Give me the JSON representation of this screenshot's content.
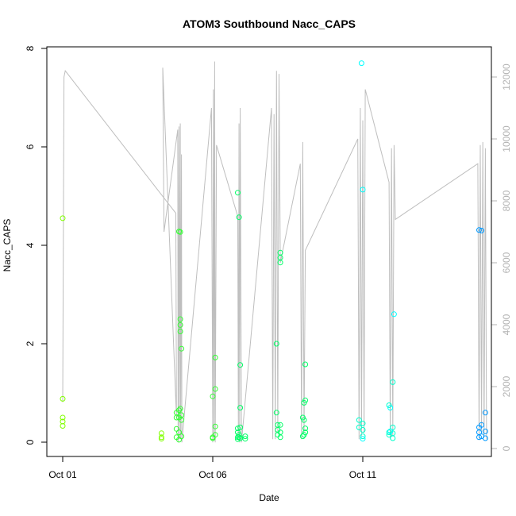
{
  "chart_data": {
    "type": "scatter",
    "title": "ATOM3 Southbound Nacc_CAPS",
    "xlabel": "Date",
    "ylabel": "Nacc_CAPS",
    "x_type": "date",
    "xlim": [
      "2016-09-30T19:00",
      "2016-10-15T12:00"
    ],
    "ylim": [
      0,
      8
    ],
    "y_ticks": [
      0,
      2,
      4,
      6,
      8
    ],
    "x_ticks": [
      {
        "value": "2016-10-01T00:00",
        "label": "Oct 01"
      },
      {
        "value": "2016-10-06T00:00",
        "label": "Oct 06"
      },
      {
        "value": "2016-10-11T00:00",
        "label": "Oct 11"
      }
    ],
    "y2lim": [
      0,
      13000
    ],
    "y2_ticks": [
      0,
      2000,
      4000,
      6000,
      8000,
      10000,
      12000
    ],
    "y2_tick_color": "#b3b3b3",
    "grid": false,
    "legend": "none",
    "point_style": "open-circle",
    "colors": {
      "series_1": "#80ff00",
      "series_2": "#33ff33",
      "series_3": "#00ff66",
      "series_4": "#00ffcc",
      "series_5": "#00ffff",
      "series_6": "#0099ff",
      "secondary_line": "#bebebe"
    },
    "series": [
      {
        "color": "#80ff00",
        "points": [
          [
            "2016-10-01T00:00",
            4.55
          ],
          [
            "2016-10-01T00:00",
            0.88
          ],
          [
            "2016-10-01T00:00",
            0.5
          ],
          [
            "2016-10-01T00:00",
            0.42
          ],
          [
            "2016-10-01T00:00",
            0.33
          ],
          [
            "2016-10-04T07:00",
            0.18
          ],
          [
            "2016-10-04T07:00",
            0.1
          ],
          [
            "2016-10-04T07:00",
            0.07
          ]
        ]
      },
      {
        "color": "#33ff33",
        "points": [
          [
            "2016-10-04T19:00",
            0.6
          ],
          [
            "2016-10-04T19:00",
            0.5
          ],
          [
            "2016-10-04T19:00",
            0.27
          ],
          [
            "2016-10-04T19:00",
            0.1
          ],
          [
            "2016-10-04T21:00",
            4.28
          ],
          [
            "2016-10-04T21:00",
            0.65
          ],
          [
            "2016-10-04T21:00",
            0.5
          ],
          [
            "2016-10-04T21:00",
            0.2
          ],
          [
            "2016-10-04T21:00",
            0.05
          ],
          [
            "2016-10-04T22:00",
            4.27
          ],
          [
            "2016-10-04T22:00",
            2.5
          ],
          [
            "2016-10-04T22:00",
            2.38
          ],
          [
            "2016-10-04T22:00",
            2.25
          ],
          [
            "2016-10-04T22:00",
            0.68
          ],
          [
            "2016-10-04T23:00",
            1.9
          ],
          [
            "2016-10-04T23:00",
            0.55
          ],
          [
            "2016-10-04T23:00",
            0.45
          ],
          [
            "2016-10-04T23:00",
            0.12
          ],
          [
            "2016-10-06T00:00",
            0.93
          ],
          [
            "2016-10-06T00:00",
            0.1
          ],
          [
            "2016-10-06T00:00",
            0.08
          ],
          [
            "2016-10-06T02:00",
            1.72
          ],
          [
            "2016-10-06T02:00",
            1.08
          ],
          [
            "2016-10-06T02:00",
            0.32
          ],
          [
            "2016-10-06T02:00",
            0.15
          ]
        ]
      },
      {
        "color": "#00ff66",
        "points": [
          [
            "2016-10-06T20:00",
            5.07
          ],
          [
            "2016-10-06T20:00",
            0.28
          ],
          [
            "2016-10-06T20:00",
            0.2
          ],
          [
            "2016-10-06T20:00",
            0.1
          ],
          [
            "2016-10-06T20:00",
            0.06
          ],
          [
            "2016-10-06T21:00",
            4.57
          ],
          [
            "2016-10-06T21:00",
            0.15
          ],
          [
            "2016-10-06T21:00",
            0.1
          ],
          [
            "2016-10-06T22:00",
            1.57
          ],
          [
            "2016-10-06T22:00",
            0.7
          ],
          [
            "2016-10-06T22:00",
            0.3
          ],
          [
            "2016-10-06T22:00",
            0.08
          ],
          [
            "2016-10-07T02:00",
            0.12
          ],
          [
            "2016-10-07T02:00",
            0.07
          ],
          [
            "2016-10-08T03:00",
            2.0
          ],
          [
            "2016-10-08T03:00",
            0.6
          ],
          [
            "2016-10-08T04:00",
            0.35
          ],
          [
            "2016-10-08T04:00",
            0.25
          ],
          [
            "2016-10-08T04:00",
            0.15
          ],
          [
            "2016-10-08T06:00",
            3.85
          ],
          [
            "2016-10-08T06:00",
            3.75
          ],
          [
            "2016-10-08T06:00",
            3.65
          ],
          [
            "2016-10-08T06:00",
            0.35
          ],
          [
            "2016-10-08T06:00",
            0.2
          ],
          [
            "2016-10-08T06:00",
            0.1
          ],
          [
            "2016-10-09T00:00",
            0.5
          ],
          [
            "2016-10-09T00:00",
            0.12
          ],
          [
            "2016-10-09T01:00",
            0.8
          ],
          [
            "2016-10-09T01:00",
            0.45
          ],
          [
            "2016-10-09T01:00",
            0.15
          ],
          [
            "2016-10-09T02:00",
            1.58
          ],
          [
            "2016-10-09T02:00",
            0.85
          ],
          [
            "2016-10-09T02:00",
            0.28
          ],
          [
            "2016-10-09T02:00",
            0.2
          ]
        ]
      },
      {
        "color": "#00ffcc",
        "points": [
          [
            "2016-10-10T21:00",
            0.45
          ],
          [
            "2016-10-10T21:00",
            0.3
          ],
          [
            "2016-10-11T00:00",
            0.38
          ],
          [
            "2016-10-11T00:00",
            0.25
          ],
          [
            "2016-10-11T00:00",
            0.12
          ],
          [
            "2016-10-11T21:00",
            0.75
          ],
          [
            "2016-10-11T21:00",
            0.2
          ],
          [
            "2016-10-11T21:00",
            0.15
          ],
          [
            "2016-10-12T00:00",
            1.22
          ],
          [
            "2016-10-12T00:00",
            0.3
          ],
          [
            "2016-10-12T00:00",
            0.18
          ],
          [
            "2016-10-12T00:00",
            0.08
          ]
        ]
      },
      {
        "color": "#00ffff",
        "points": [
          [
            "2016-10-10T23:00",
            7.7
          ],
          [
            "2016-10-11T00:00",
            5.13
          ],
          [
            "2016-10-11T00:00",
            0.07
          ],
          [
            "2016-10-12T01:00",
            2.6
          ],
          [
            "2016-10-11T22:00",
            0.7
          ],
          [
            "2016-10-11T22:00",
            0.22
          ]
        ]
      },
      {
        "color": "#0099ff",
        "points": [
          [
            "2016-10-14T21:00",
            4.31
          ],
          [
            "2016-10-14T21:00",
            0.3
          ],
          [
            "2016-10-14T21:00",
            0.2
          ],
          [
            "2016-10-14T21:00",
            0.1
          ],
          [
            "2016-10-14T23:00",
            4.3
          ],
          [
            "2016-10-14T23:00",
            0.35
          ],
          [
            "2016-10-14T23:00",
            0.12
          ],
          [
            "2016-10-15T02:00",
            0.6
          ],
          [
            "2016-10-15T02:00",
            0.22
          ],
          [
            "2016-10-15T02:00",
            0.08
          ]
        ]
      }
    ],
    "secondary_line": {
      "color": "#bebebe",
      "axis": "right",
      "points": [
        [
          "2016-10-01T00:00",
          1500
        ],
        [
          "2016-10-01T01:00",
          12000
        ],
        [
          "2016-10-01T02:00",
          12200
        ],
        [
          "2016-10-04T18:30",
          7600
        ],
        [
          "2016-10-04T19:00",
          1000
        ],
        [
          "2016-10-04T08:00",
          12300
        ],
        [
          "2016-10-04T09:00",
          7000
        ],
        [
          "2016-10-04T20:00",
          10300
        ],
        [
          "2016-10-04T20:20",
          200
        ],
        [
          "2016-10-04T21:00",
          10400
        ],
        [
          "2016-10-04T21:20",
          300
        ],
        [
          "2016-10-04T22:00",
          10500
        ],
        [
          "2016-10-04T22:20",
          300
        ],
        [
          "2016-10-04T23:00",
          9500
        ],
        [
          "2016-10-04T23:20",
          200
        ],
        [
          "2016-10-05T23:00",
          11000
        ],
        [
          "2016-10-06T00:00",
          200
        ],
        [
          "2016-10-06T00:30",
          11600
        ],
        [
          "2016-10-06T01:00",
          300
        ],
        [
          "2016-10-06T01:30",
          12500
        ],
        [
          "2016-10-06T02:00",
          200
        ],
        [
          "2016-10-06T03:00",
          9800
        ],
        [
          "2016-10-06T20:00",
          7500
        ],
        [
          "2016-10-06T20:30",
          300
        ],
        [
          "2016-10-06T21:00",
          10500
        ],
        [
          "2016-10-06T21:30",
          200
        ],
        [
          "2016-10-06T22:00",
          11000
        ],
        [
          "2016-10-06T23:00",
          200
        ],
        [
          "2016-10-07T23:00",
          11000
        ],
        [
          "2016-10-08T00:00",
          300
        ],
        [
          "2016-10-08T01:00",
          10800
        ],
        [
          "2016-10-08T02:00",
          300
        ],
        [
          "2016-10-08T03:00",
          12200
        ],
        [
          "2016-10-08T04:00",
          500
        ],
        [
          "2016-10-08T05:00",
          12100
        ],
        [
          "2016-10-08T06:00",
          6000
        ],
        [
          "2016-10-08T22:00",
          9200
        ],
        [
          "2016-10-08T23:00",
          300
        ],
        [
          "2016-10-09T00:00",
          9900
        ],
        [
          "2016-10-09T01:00",
          500
        ],
        [
          "2016-10-09T02:00",
          6400
        ],
        [
          "2016-10-10T20:00",
          10000
        ],
        [
          "2016-10-10T21:00",
          300
        ],
        [
          "2016-10-10T22:00",
          11000
        ],
        [
          "2016-10-10T23:00",
          400
        ],
        [
          "2016-10-11T00:00",
          10600
        ],
        [
          "2016-10-11T01:00",
          500
        ],
        [
          "2016-10-11T02:00",
          11600
        ],
        [
          "2016-10-11T21:00",
          8600
        ],
        [
          "2016-10-11T22:00",
          300
        ],
        [
          "2016-10-11T23:00",
          9700
        ],
        [
          "2016-10-12T00:00",
          400
        ],
        [
          "2016-10-12T01:00",
          9800
        ],
        [
          "2016-10-12T02:00",
          7400
        ],
        [
          "2016-10-14T20:00",
          9200
        ],
        [
          "2016-10-14T21:00",
          300
        ],
        [
          "2016-10-14T22:00",
          9800
        ],
        [
          "2016-10-14T23:00",
          500
        ],
        [
          "2016-10-15T00:00",
          9900
        ],
        [
          "2016-10-15T01:00",
          400
        ],
        [
          "2016-10-15T02:00",
          9700
        ],
        [
          "2016-10-15T03:00",
          300
        ]
      ]
    }
  }
}
